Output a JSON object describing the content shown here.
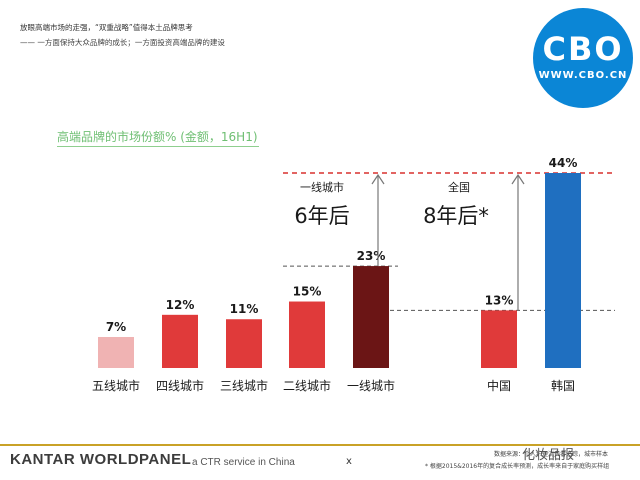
{
  "header": {
    "line1": "放眼高端市场的走强，“双重战略”值得本土品牌思考",
    "line2": "—— 一方面保持大众品牌的成长；一方面投资高端品牌的建设"
  },
  "logo": {
    "main": "CBO",
    "sub": "WWW.CBO.CN",
    "bg": "#0b86d6"
  },
  "chart_data": {
    "type": "bar",
    "title": "高端品牌的市场份额% (金额，16H1)",
    "categories": [
      "五线城市",
      "四线城市",
      "三线城市",
      "二线城市",
      "一线城市",
      "中国",
      "韩国"
    ],
    "values": [
      7,
      12,
      11,
      15,
      23,
      13,
      44
    ],
    "value_labels": [
      "7%",
      "12%",
      "11%",
      "15%",
      "23%",
      "13%",
      "44%"
    ],
    "colors": [
      "#f0b3b3",
      "#e03a3a",
      "#e03a3a",
      "#e03a3a",
      "#6b1515",
      "#e03a3a",
      "#1f6fc0"
    ],
    "ylim": [
      0,
      50
    ],
    "annotations": [
      {
        "line1": "一线城市",
        "line2": "6年后"
      },
      {
        "line1": "全国",
        "line2": "8年后*"
      }
    ],
    "reference_lines": [
      {
        "value": 44,
        "style": "red-dashed"
      },
      {
        "value": 23,
        "style": "grey-dashed"
      },
      {
        "value": 13,
        "style": "grey-dashed"
      }
    ]
  },
  "footer": {
    "brand_left": "KANTAR",
    "brand_right": "WORLDPANEL",
    "tagline": "a CTR service in China",
    "mark": "x",
    "source": "数据来源：个人护理消费者追踪，城市样本",
    "note": "* 根据2015&2016年的复合成长率预测，成长率来自于家庭购买样组",
    "watermark": "化妆品报"
  }
}
